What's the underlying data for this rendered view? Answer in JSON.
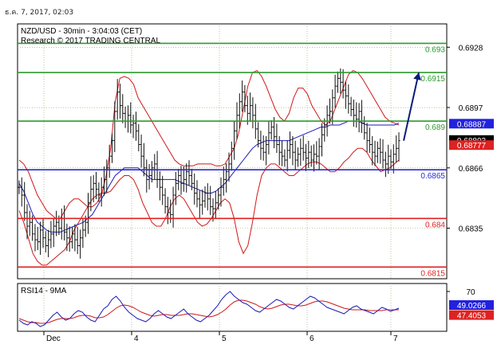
{
  "timestamp": "ธ.ค. 7, 2017, 02:03",
  "chart_data": {
    "type": "line",
    "title": "NZD/USD - 30min - 3:04:03 (CET)",
    "subtitle": "Research © 2017 TRADING CENTRAL",
    "x_labels": [
      "Dec",
      "4",
      "5",
      "6",
      "7"
    ],
    "y_ticks": [
      "0.6928",
      "0.6897",
      "0.6866",
      "0.6835"
    ],
    "ylim": [
      0.6809,
      0.694
    ],
    "levels": [
      {
        "label": "0.693",
        "value": 0.693,
        "color": "#2e9a2e"
      },
      {
        "label": "0.6915",
        "value": 0.6915,
        "color": "#2e9a2e"
      },
      {
        "label": "0.689",
        "value": 0.689,
        "color": "#2e9a2e"
      },
      {
        "label": "0.6865",
        "value": 0.6865,
        "color": "#2a2ad0"
      },
      {
        "label": "0.684",
        "value": 0.684,
        "color": "#e02020"
      },
      {
        "label": "0.6815",
        "value": 0.6815,
        "color": "#e02020"
      }
    ],
    "badges": [
      {
        "label": "0.68887",
        "value": 0.68887,
        "color": "#2222dd"
      },
      {
        "label": "0.68803",
        "value": 0.68803,
        "color": "#000000"
      },
      {
        "label": "0.68777",
        "value": 0.68777,
        "color": "#dd2222"
      }
    ],
    "price_series": [
      0.6856,
      0.6852,
      0.6843,
      0.6836,
      0.6838,
      0.6832,
      0.6829,
      0.6828,
      0.6834,
      0.683,
      0.6826,
      0.6829,
      0.6832,
      0.6836,
      0.6838,
      0.6835,
      0.684,
      0.6833,
      0.683,
      0.6828,
      0.6832,
      0.6829,
      0.6826,
      0.683,
      0.6834,
      0.6838,
      0.6848,
      0.6855,
      0.6858,
      0.6855,
      0.6852,
      0.6856,
      0.686,
      0.6866,
      0.6872,
      0.688,
      0.6895,
      0.6905,
      0.6898,
      0.6894,
      0.689,
      0.6893,
      0.6888,
      0.6889,
      0.6885,
      0.6878,
      0.6872,
      0.6866,
      0.686,
      0.6862,
      0.6866,
      0.6868,
      0.686,
      0.6856,
      0.6852,
      0.6846,
      0.6843,
      0.6842,
      0.6852,
      0.6858,
      0.6862,
      0.6858,
      0.686,
      0.6864,
      0.6862,
      0.6858,
      0.6853,
      0.685,
      0.6847,
      0.6849,
      0.6853,
      0.685,
      0.6846,
      0.6845,
      0.6848,
      0.6852,
      0.6856,
      0.686,
      0.6864,
      0.6868,
      0.6876,
      0.6885,
      0.6893,
      0.69,
      0.6905,
      0.6898,
      0.6894,
      0.6898,
      0.6893,
      0.6886,
      0.688,
      0.6876,
      0.6874,
      0.6878,
      0.6884,
      0.6887,
      0.6882,
      0.6878,
      0.6874,
      0.6872,
      0.687,
      0.6875,
      0.6878,
      0.6874,
      0.687,
      0.6873,
      0.6876,
      0.6874,
      0.6871,
      0.6874,
      0.687,
      0.6873,
      0.6872,
      0.6877,
      0.6883,
      0.6888,
      0.6893,
      0.6895,
      0.6902,
      0.6908,
      0.6912,
      0.691,
      0.6906,
      0.6903,
      0.6899,
      0.6896,
      0.6893,
      0.6891,
      0.6895,
      0.6889,
      0.6884,
      0.688,
      0.6878,
      0.6874,
      0.6872,
      0.6876,
      0.6874,
      0.687,
      0.6868,
      0.6872,
      0.6869,
      0.6873,
      0.6876,
      0.688
    ],
    "bb_upper": [
      0.687,
      0.6868,
      0.6864,
      0.6858,
      0.6852,
      0.6848,
      0.6844,
      0.6842,
      0.684,
      0.684,
      0.6844,
      0.6848,
      0.685,
      0.685,
      0.6848,
      0.6846,
      0.6846,
      0.6848,
      0.6852,
      0.6862,
      0.6876,
      0.69,
      0.6912,
      0.6913,
      0.6912,
      0.6909,
      0.6902,
      0.6898,
      0.6894,
      0.689,
      0.6886,
      0.6882,
      0.6878,
      0.6874,
      0.687,
      0.6868,
      0.6867,
      0.6867,
      0.6867,
      0.6868,
      0.6868,
      0.6868,
      0.6868,
      0.6867,
      0.6867,
      0.6868,
      0.6872,
      0.6876,
      0.6884,
      0.6896,
      0.6908,
      0.6915,
      0.6916,
      0.6913,
      0.6908,
      0.6902,
      0.6896,
      0.6892,
      0.689,
      0.6894,
      0.6902,
      0.6907,
      0.6907,
      0.6904,
      0.6898,
      0.6894,
      0.689,
      0.6888,
      0.689,
      0.6896,
      0.6902,
      0.6908,
      0.6914,
      0.6916,
      0.6915,
      0.6912,
      0.6908,
      0.6904,
      0.69,
      0.6896,
      0.6892,
      0.689,
      0.6889,
      0.6888
    ],
    "bb_lower": [
      0.6844,
      0.6838,
      0.683,
      0.6822,
      0.6818,
      0.6816,
      0.6816,
      0.6818,
      0.682,
      0.6822,
      0.6824,
      0.6828,
      0.6834,
      0.6838,
      0.6842,
      0.6846,
      0.685,
      0.6852,
      0.6853,
      0.6853,
      0.6854,
      0.6857,
      0.686,
      0.6862,
      0.6862,
      0.686,
      0.6855,
      0.6848,
      0.6843,
      0.6838,
      0.6836,
      0.6836,
      0.684,
      0.6846,
      0.685,
      0.6852,
      0.685,
      0.6846,
      0.6842,
      0.6838,
      0.6836,
      0.6837,
      0.684,
      0.6844,
      0.6848,
      0.685,
      0.6848,
      0.684,
      0.6828,
      0.6822,
      0.6826,
      0.6838,
      0.6852,
      0.6862,
      0.6866,
      0.6868,
      0.6868,
      0.6866,
      0.6864,
      0.6862,
      0.6862,
      0.6864,
      0.6866,
      0.6868,
      0.6869,
      0.6869,
      0.6868,
      0.6866,
      0.6864,
      0.6864,
      0.6866,
      0.6869,
      0.6871,
      0.6874,
      0.6876,
      0.6876,
      0.6874,
      0.687,
      0.6867,
      0.6864,
      0.6865,
      0.6866,
      0.6868,
      0.687
    ],
    "ma_line": [
      0.6858,
      0.6854,
      0.6848,
      0.6842,
      0.6838,
      0.6836,
      0.6834,
      0.6833,
      0.6833,
      0.6833,
      0.6834,
      0.6835,
      0.6836,
      0.6837,
      0.6838,
      0.684,
      0.6842,
      0.6846,
      0.685,
      0.6854,
      0.6858,
      0.6862,
      0.6864,
      0.6866,
      0.6866,
      0.6866,
      0.6866,
      0.6864,
      0.6862,
      0.686,
      0.686,
      0.686,
      0.686,
      0.686,
      0.686,
      0.6859,
      0.6858,
      0.6857,
      0.6856,
      0.6855,
      0.6854,
      0.6853,
      0.6853,
      0.6854,
      0.6856,
      0.6858,
      0.6861,
      0.6864,
      0.6867,
      0.687,
      0.6873,
      0.6876,
      0.6878,
      0.6879,
      0.688,
      0.688,
      0.688,
      0.688,
      0.688,
      0.688,
      0.6881,
      0.6882,
      0.6883,
      0.6884,
      0.6885,
      0.6886,
      0.6887,
      0.6887,
      0.6888,
      0.6888,
      0.6888,
      0.6889,
      0.689,
      0.689,
      0.689,
      0.6889,
      0.6888,
      0.6888,
      0.6888,
      0.6888,
      0.6888,
      0.6888,
      0.6888,
      0.6889
    ],
    "projection": [
      [
        0.688,
        0.6915
      ]
    ],
    "rsi": {
      "label": "RSI14 - 9MA",
      "y_ticks": [
        "70"
      ],
      "ylim": [
        20,
        80
      ],
      "badges": [
        {
          "label": "49.0266",
          "value": 49.0266,
          "color": "#2222dd"
        },
        {
          "label": "47.4053",
          "value": 47.4053,
          "color": "#dd2222"
        }
      ],
      "rsi_series": [
        34,
        30,
        28,
        32,
        30,
        26,
        28,
        34,
        40,
        44,
        38,
        34,
        36,
        42,
        46,
        44,
        38,
        34,
        32,
        40,
        48,
        52,
        60,
        64,
        58,
        50,
        44,
        40,
        36,
        34,
        32,
        36,
        42,
        46,
        42,
        38,
        36,
        40,
        44,
        48,
        42,
        38,
        34,
        32,
        36,
        40,
        46,
        52,
        60,
        66,
        70,
        64,
        60,
        56,
        54,
        50,
        46,
        44,
        48,
        52,
        56,
        60,
        58,
        54,
        50,
        48,
        52,
        56,
        60,
        64,
        62,
        58,
        54,
        50,
        48,
        46,
        44,
        42,
        46,
        50,
        52,
        48,
        46,
        44,
        42,
        46,
        50,
        48,
        45,
        47,
        49
      ],
      "ma_series": [
        36,
        34,
        32,
        31,
        31,
        30,
        30,
        31,
        33,
        35,
        36,
        36,
        36,
        37,
        39,
        40,
        40,
        39,
        37,
        37,
        38,
        41,
        45,
        49,
        52,
        53,
        52,
        50,
        47,
        44,
        42,
        40,
        39,
        40,
        41,
        41,
        40,
        40,
        40,
        41,
        42,
        42,
        41,
        40,
        39,
        38,
        39,
        41,
        44,
        48,
        53,
        57,
        59,
        59,
        58,
        56,
        54,
        51,
        49,
        48,
        49,
        51,
        53,
        54,
        54,
        53,
        52,
        52,
        53,
        55,
        57,
        58,
        58,
        57,
        55,
        53,
        51,
        49,
        48,
        47,
        47,
        47,
        47,
        46,
        46,
        46,
        46,
        47,
        47,
        47,
        47
      ]
    }
  }
}
